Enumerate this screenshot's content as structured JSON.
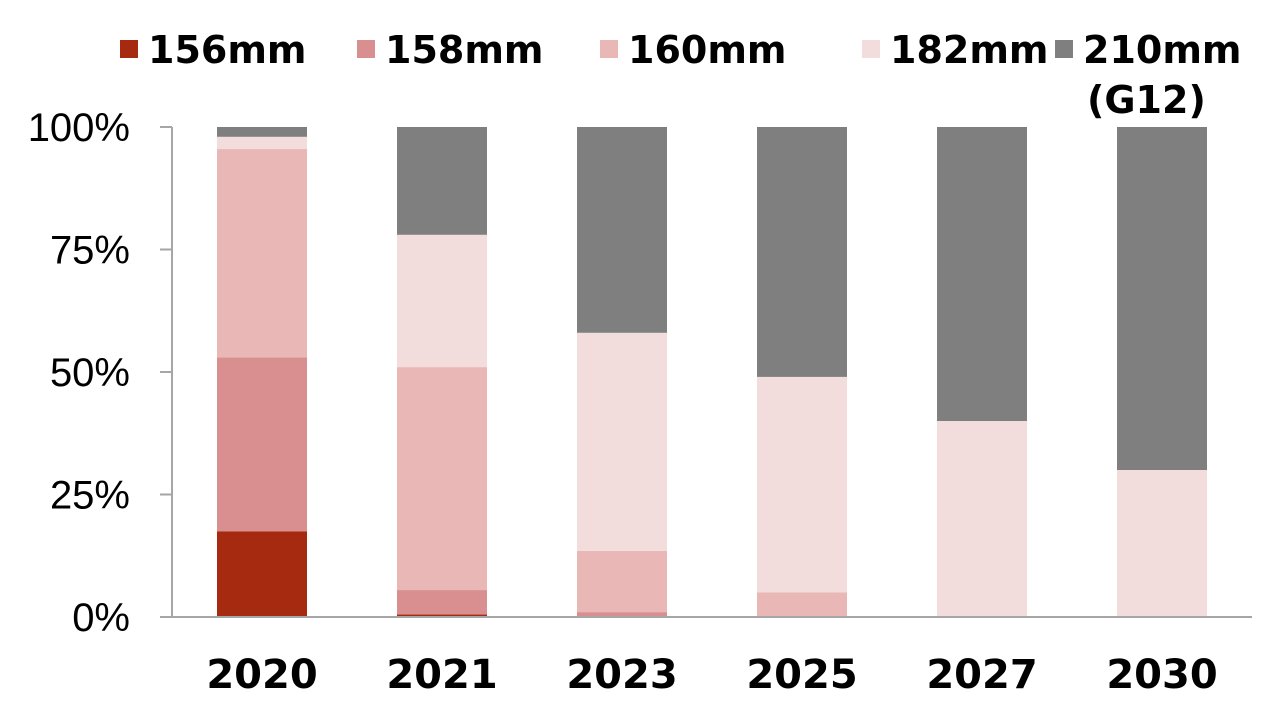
{
  "chart_data": {
    "type": "bar",
    "stacked": true,
    "normalized": true,
    "title": "",
    "xlabel": "",
    "ylabel": "",
    "ylim": [
      0,
      100
    ],
    "y_ticks": [
      "0%",
      "25%",
      "50%",
      "75%",
      "100%"
    ],
    "y_tick_values": [
      0,
      25,
      50,
      75,
      100
    ],
    "legend_position": "top",
    "categories": [
      "2020",
      "2021",
      "2023",
      "2025",
      "2027",
      "2030"
    ],
    "series": [
      {
        "name": "156mm",
        "color": "#a52a0f",
        "values": [
          17.5,
          0.5,
          0,
          0,
          0,
          0
        ]
      },
      {
        "name": "158mm",
        "color": "#d98f8f",
        "values": [
          35.5,
          5,
          1,
          0,
          0,
          0
        ]
      },
      {
        "name": "160mm",
        "color": "#e9b7b6",
        "values": [
          42.5,
          45.5,
          12.5,
          5,
          0,
          0
        ]
      },
      {
        "name": "182mm",
        "color": "#f3dcdc",
        "values": [
          2.5,
          27,
          44.5,
          44,
          40,
          30
        ]
      },
      {
        "name": "210mm",
        "sublabel": "(G12)",
        "color": "#7f7f7f",
        "values": [
          2,
          22,
          42,
          51,
          60,
          70
        ]
      }
    ]
  }
}
